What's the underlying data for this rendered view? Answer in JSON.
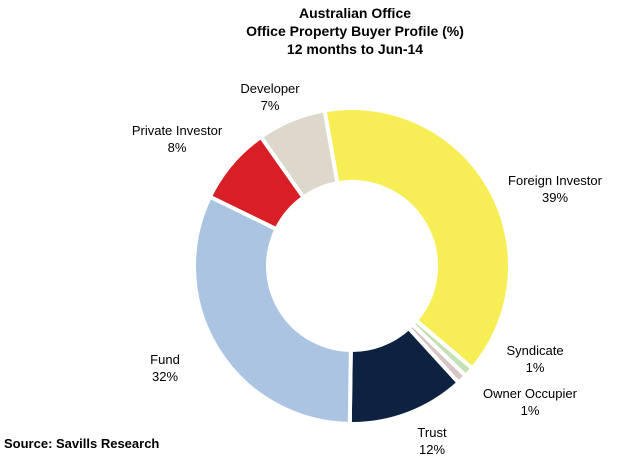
{
  "chart_data": {
    "type": "donut",
    "title": [
      "Australian Office",
      "Office Property  Buyer  Profile (%)",
      "12 months to  Jun-14"
    ],
    "source": "Source: Savills Research",
    "categories": [
      "Foreign Investor",
      "Syndicate",
      "Owner Occupier",
      "Trust",
      "Fund",
      "Private Investor",
      "Developer"
    ],
    "values": [
      39,
      1,
      1,
      12,
      32,
      8,
      7
    ],
    "value_labels": [
      "39%",
      "1%",
      "1%",
      "12%",
      "32%",
      "8%",
      "7%"
    ],
    "colors": [
      "#f7ee55",
      "#c5e0b3",
      "#d7c4c4",
      "#0d2240",
      "#aac4e2",
      "#d91f26",
      "#ddd8cb"
    ]
  }
}
